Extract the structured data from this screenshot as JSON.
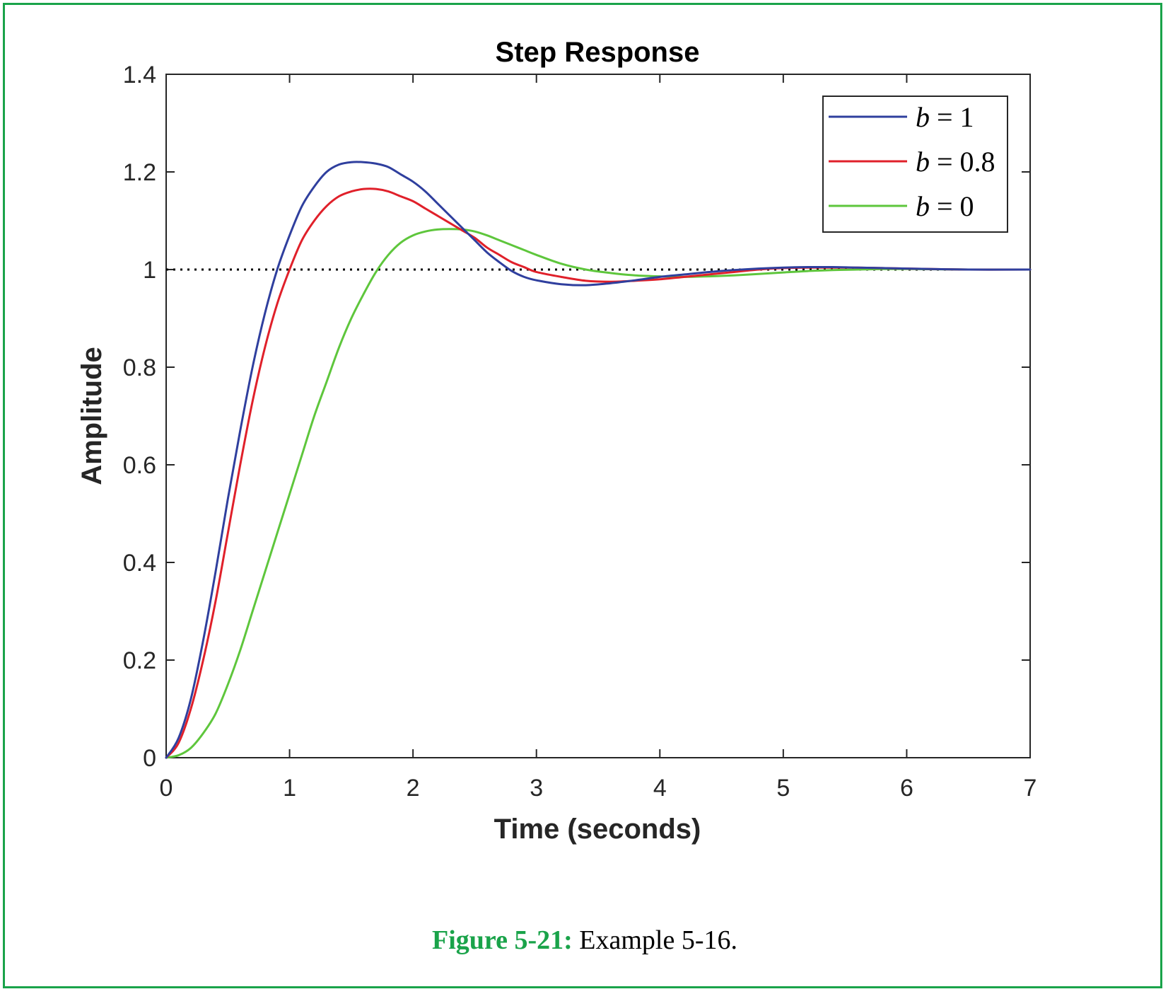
{
  "chart_data": {
    "type": "line",
    "title": "Step Response",
    "xlabel": "Time (seconds)",
    "ylabel": "Amplitude",
    "xlim": [
      0,
      7
    ],
    "ylim": [
      0,
      1.4
    ],
    "xticks": [
      "0",
      "1",
      "2",
      "3",
      "4",
      "5",
      "6",
      "7"
    ],
    "yticks": [
      "0",
      "0.2",
      "0.4",
      "0.6",
      "0.8",
      "1",
      "1.2",
      "1.4"
    ],
    "grid": false,
    "legend_position": "top-right",
    "reference_line": {
      "y": 1,
      "style": "dotted",
      "color": "#000000"
    },
    "x": [
      0,
      0.1,
      0.2,
      0.3,
      0.4,
      0.5,
      0.6,
      0.7,
      0.8,
      0.9,
      1.0,
      1.1,
      1.2,
      1.3,
      1.4,
      1.5,
      1.6,
      1.7,
      1.8,
      1.9,
      2.0,
      2.1,
      2.2,
      2.3,
      2.4,
      2.5,
      2.6,
      2.7,
      2.8,
      2.9,
      3.0,
      3.2,
      3.4,
      3.6,
      3.8,
      4.0,
      4.2,
      4.4,
      4.6,
      4.8,
      5.0,
      5.2,
      5.4,
      5.6,
      5.8,
      6.0,
      6.5,
      7.0
    ],
    "series": [
      {
        "name": "b = 1",
        "label_var": "b",
        "label_rest": " = 1",
        "color": "#2f3f9e",
        "values": [
          0,
          0.04,
          0.12,
          0.24,
          0.38,
          0.53,
          0.67,
          0.8,
          0.91,
          1.0,
          1.07,
          1.13,
          1.17,
          1.2,
          1.215,
          1.22,
          1.22,
          1.217,
          1.21,
          1.195,
          1.18,
          1.16,
          1.135,
          1.11,
          1.085,
          1.06,
          1.035,
          1.015,
          0.997,
          0.985,
          0.978,
          0.97,
          0.968,
          0.972,
          0.978,
          0.985,
          0.99,
          0.995,
          0.999,
          1.002,
          1.004,
          1.005,
          1.005,
          1.004,
          1.003,
          1.002,
          1.0,
          1.0
        ]
      },
      {
        "name": "b = 0.8",
        "label_var": "b",
        "label_rest": " = 0.8",
        "color": "#e0202a",
        "values": [
          0,
          0.03,
          0.1,
          0.2,
          0.32,
          0.46,
          0.6,
          0.73,
          0.84,
          0.93,
          1.0,
          1.06,
          1.1,
          1.13,
          1.15,
          1.16,
          1.165,
          1.165,
          1.16,
          1.15,
          1.14,
          1.125,
          1.11,
          1.095,
          1.08,
          1.065,
          1.045,
          1.03,
          1.015,
          1.005,
          0.995,
          0.985,
          0.977,
          0.975,
          0.977,
          0.98,
          0.985,
          0.99,
          0.995,
          1.0,
          1.003,
          1.004,
          1.004,
          1.004,
          1.003,
          1.002,
          1.0,
          1.0
        ]
      },
      {
        "name": "b = 0",
        "label_var": "b",
        "label_rest": " = 0",
        "color": "#5ec63c",
        "values": [
          0,
          0.005,
          0.02,
          0.05,
          0.09,
          0.15,
          0.22,
          0.3,
          0.38,
          0.46,
          0.54,
          0.62,
          0.7,
          0.77,
          0.84,
          0.9,
          0.95,
          0.995,
          1.03,
          1.055,
          1.07,
          1.078,
          1.082,
          1.083,
          1.082,
          1.078,
          1.07,
          1.06,
          1.05,
          1.04,
          1.03,
          1.012,
          1.0,
          0.993,
          0.988,
          0.986,
          0.985,
          0.986,
          0.988,
          0.991,
          0.994,
          0.997,
          0.999,
          1.0,
          1.001,
          1.001,
          1.0,
          1.0
        ]
      }
    ]
  },
  "caption": {
    "label": "Figure 5-21:",
    "text": " Example 5-16."
  }
}
